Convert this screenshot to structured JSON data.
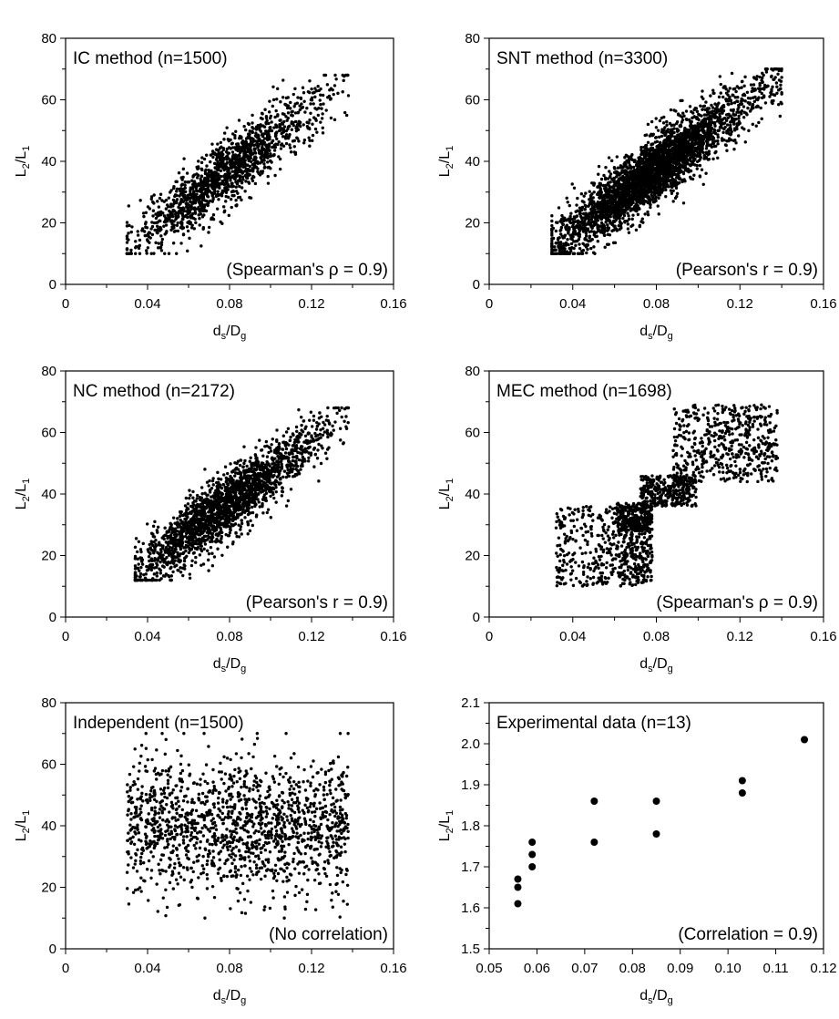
{
  "figure": {
    "panels": [
      {
        "id": "ic",
        "title": "IC method (n=1500)",
        "annotation": "(Spearman's ρ = 0.9)",
        "x_label": {
          "main": "d",
          "sub1": "s",
          "sep": "/D",
          "sub2": "g"
        },
        "y_label": {
          "main": "L",
          "sub1": "2",
          "sep": "/L",
          "sub2": "1"
        }
      },
      {
        "id": "snt",
        "title": "SNT method (n=3300)",
        "annotation": "(Pearson's r = 0.9)",
        "x_label": {
          "main": "d",
          "sub1": "s",
          "sep": "/D",
          "sub2": "g"
        },
        "y_label": {
          "main": "L",
          "sub1": "2",
          "sep": "/L",
          "sub2": "1"
        }
      },
      {
        "id": "nc",
        "title": "NC method (n=2172)",
        "annotation": "(Pearson's r = 0.9)",
        "x_label": {
          "main": "d",
          "sub1": "s",
          "sep": "/D",
          "sub2": "g"
        },
        "y_label": {
          "main": "L",
          "sub1": "2",
          "sep": "/L",
          "sub2": "1"
        }
      },
      {
        "id": "mec",
        "title": "MEC method (n=1698)",
        "annotation": "(Spearman's ρ = 0.9)",
        "x_label": {
          "main": "d",
          "sub1": "s",
          "sep": "/D",
          "sub2": "g"
        },
        "y_label": {
          "main": "L",
          "sub1": "2",
          "sep": "/L",
          "sub2": "1"
        }
      },
      {
        "id": "ind",
        "title": "Independent (n=1500)",
        "annotation": "(No correlation)",
        "x_label": {
          "main": "d",
          "sub1": "s",
          "sep": "/D",
          "sub2": "g"
        },
        "y_label": {
          "main": "L",
          "sub1": "2",
          "sep": "/L",
          "sub2": "1"
        }
      },
      {
        "id": "exp",
        "title": "Experimental data (n=13)",
        "annotation": "(Correlation = 0.9)",
        "x_label": {
          "main": "d",
          "sub1": "s",
          "sep": "/D",
          "sub2": "g"
        },
        "y_label": {
          "main": "L",
          "sub1": "2",
          "sep": "/L",
          "sub2": "1"
        }
      }
    ]
  },
  "chart_data": [
    {
      "type": "scatter",
      "panel": "ic",
      "n": 1500,
      "distribution": "correlated",
      "rank_correlation": 0.9,
      "xlim": [
        0,
        0.16
      ],
      "ylim": [
        0,
        80
      ],
      "x_ticks": [
        0,
        0.04,
        0.08,
        0.12,
        0.16
      ],
      "x_tick_labels": [
        "0",
        "0.04",
        "0.08",
        "0.12",
        "0.16"
      ],
      "y_ticks": [
        0,
        20,
        40,
        60,
        80
      ],
      "y_tick_labels": [
        "0",
        "20",
        "40",
        "60",
        "80"
      ],
      "x_range": [
        0.03,
        0.138
      ],
      "y_range": [
        10,
        68
      ],
      "grid": false
    },
    {
      "type": "scatter",
      "panel": "snt",
      "n": 3300,
      "distribution": "correlated",
      "correlation": 0.9,
      "xlim": [
        0,
        0.16
      ],
      "ylim": [
        0,
        80
      ],
      "x_ticks": [
        0,
        0.04,
        0.08,
        0.12,
        0.16
      ],
      "x_tick_labels": [
        "0",
        "0.04",
        "0.08",
        "0.12",
        "0.16"
      ],
      "y_ticks": [
        0,
        20,
        40,
        60,
        80
      ],
      "y_tick_labels": [
        "0",
        "20",
        "40",
        "60",
        "80"
      ],
      "x_range": [
        0.03,
        0.14
      ],
      "y_range": [
        10,
        70
      ],
      "grid": false
    },
    {
      "type": "scatter",
      "panel": "nc",
      "n": 2172,
      "distribution": "correlated",
      "correlation": 0.9,
      "xlim": [
        0,
        0.16
      ],
      "ylim": [
        0,
        80
      ],
      "x_ticks": [
        0,
        0.04,
        0.08,
        0.12,
        0.16
      ],
      "x_tick_labels": [
        "0",
        "0.04",
        "0.08",
        "0.12",
        "0.16"
      ],
      "y_ticks": [
        0,
        20,
        40,
        60,
        80
      ],
      "y_tick_labels": [
        "0",
        "20",
        "40",
        "60",
        "80"
      ],
      "x_range": [
        0.034,
        0.138
      ],
      "y_range": [
        12,
        68
      ],
      "grid": false
    },
    {
      "type": "scatter",
      "panel": "mec",
      "n": 1698,
      "distribution": "block-clustered",
      "rank_correlation": 0.9,
      "xlim": [
        0,
        0.16
      ],
      "ylim": [
        0,
        80
      ],
      "x_ticks": [
        0,
        0.04,
        0.08,
        0.12,
        0.16
      ],
      "x_tick_labels": [
        "0",
        "0.04",
        "0.08",
        "0.12",
        "0.16"
      ],
      "y_ticks": [
        0,
        20,
        40,
        60,
        80
      ],
      "y_tick_labels": [
        "0",
        "20",
        "40",
        "60",
        "80"
      ],
      "clusters": [
        {
          "x": [
            0.032,
            0.078
          ],
          "y": [
            10,
            36
          ]
        },
        {
          "x": [
            0.061,
            0.078
          ],
          "y": [
            28,
            37
          ]
        },
        {
          "x": [
            0.072,
            0.099
          ],
          "y": [
            36,
            46
          ]
        },
        {
          "x": [
            0.088,
            0.138
          ],
          "y": [
            44,
            69
          ]
        }
      ],
      "grid": false
    },
    {
      "type": "scatter",
      "panel": "ind",
      "n": 1500,
      "distribution": "uncorrelated",
      "correlation": 0,
      "xlim": [
        0,
        0.16
      ],
      "ylim": [
        0,
        80
      ],
      "x_ticks": [
        0,
        0.04,
        0.08,
        0.12,
        0.16
      ],
      "x_tick_labels": [
        "0",
        "0.04",
        "0.08",
        "0.12",
        "0.16"
      ],
      "y_ticks": [
        0,
        20,
        40,
        60,
        80
      ],
      "y_tick_labels": [
        "0",
        "20",
        "40",
        "60",
        "80"
      ],
      "x_range": [
        0.03,
        0.138
      ],
      "y_range": [
        10,
        70
      ],
      "grid": false
    },
    {
      "type": "scatter",
      "panel": "exp",
      "correlation": 0.9,
      "xlim": [
        0.05,
        0.12
      ],
      "ylim": [
        1.5,
        2.1
      ],
      "x_ticks": [
        0.05,
        0.06,
        0.07,
        0.08,
        0.09,
        0.1,
        0.11,
        0.12
      ],
      "x_tick_labels": [
        "0.05",
        "0.06",
        "0.07",
        "0.08",
        "0.09",
        "0.10",
        "0.11",
        "0.12"
      ],
      "y_ticks": [
        1.5,
        1.6,
        1.7,
        1.8,
        1.9,
        2.0,
        2.1
      ],
      "y_tick_labels": [
        "1.5",
        "1.6",
        "1.7",
        "1.8",
        "1.9",
        "2.0",
        "2.1"
      ],
      "points": [
        {
          "x": 0.056,
          "y": 1.61
        },
        {
          "x": 0.056,
          "y": 1.65
        },
        {
          "x": 0.056,
          "y": 1.67
        },
        {
          "x": 0.059,
          "y": 1.7
        },
        {
          "x": 0.059,
          "y": 1.73
        },
        {
          "x": 0.059,
          "y": 1.76
        },
        {
          "x": 0.072,
          "y": 1.76
        },
        {
          "x": 0.072,
          "y": 1.86
        },
        {
          "x": 0.085,
          "y": 1.78
        },
        {
          "x": 0.085,
          "y": 1.86
        },
        {
          "x": 0.103,
          "y": 1.88
        },
        {
          "x": 0.103,
          "y": 1.91
        },
        {
          "x": 0.116,
          "y": 2.01
        }
      ],
      "grid": false
    }
  ]
}
